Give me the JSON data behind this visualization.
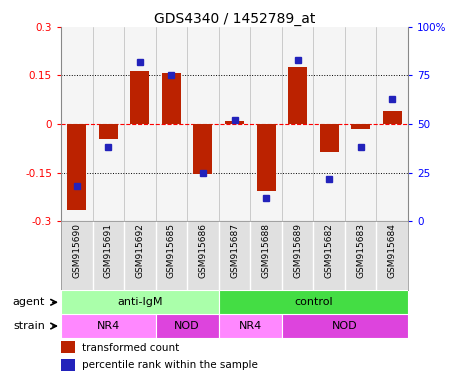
{
  "title": "GDS4340 / 1452789_at",
  "samples": [
    "GSM915690",
    "GSM915691",
    "GSM915692",
    "GSM915685",
    "GSM915686",
    "GSM915687",
    "GSM915688",
    "GSM915689",
    "GSM915682",
    "GSM915683",
    "GSM915684"
  ],
  "red_values": [
    -0.265,
    -0.045,
    0.165,
    0.158,
    -0.155,
    0.01,
    -0.205,
    0.175,
    -0.085,
    -0.015,
    0.04
  ],
  "blue_values": [
    18,
    38,
    82,
    75,
    25,
    52,
    12,
    83,
    22,
    38,
    63
  ],
  "agent_groups": [
    {
      "label": "anti-IgM",
      "start": 0,
      "end": 5,
      "color": "#AAFFAA"
    },
    {
      "label": "control",
      "start": 5,
      "end": 11,
      "color": "#44DD44"
    }
  ],
  "strain_groups": [
    {
      "label": "NR4",
      "start": 0,
      "end": 3,
      "color": "#FF88FF"
    },
    {
      "label": "NOD",
      "start": 3,
      "end": 5,
      "color": "#DD44DD"
    },
    {
      "label": "NR4",
      "start": 5,
      "end": 7,
      "color": "#FF88FF"
    },
    {
      "label": "NOD",
      "start": 7,
      "end": 11,
      "color": "#DD44DD"
    }
  ],
  "ylim_left": [
    -0.3,
    0.3
  ],
  "ylim_right": [
    0,
    100
  ],
  "yticks_left": [
    -0.3,
    -0.15,
    0.0,
    0.15,
    0.3
  ],
  "ytick_labels_left": [
    "-0.3",
    "-0.15",
    "0",
    "0.15",
    "0.3"
  ],
  "yticks_right": [
    0,
    25,
    50,
    75,
    100
  ],
  "ytick_labels_right": [
    "0",
    "25",
    "50",
    "75",
    "100%"
  ],
  "bar_color": "#BB2200",
  "dot_color": "#2222BB",
  "sample_bg": "#E0E0E0",
  "plot_bg": "#F5F5F5",
  "legend_red_label": "transformed count",
  "legend_blue_label": "percentile rank within the sample",
  "agent_label": "agent",
  "strain_label": "strain"
}
